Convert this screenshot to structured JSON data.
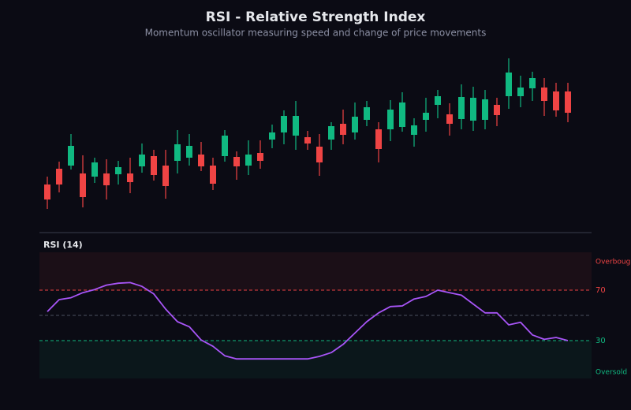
{
  "chart_data": [
    {
      "type": "candlestick",
      "title": "RSI - Relative Strength Index",
      "subtitle": "Momentum oscillator measuring speed and change of price movements",
      "open": [
        66,
        86,
        90,
        80,
        76,
        80,
        79,
        80,
        89,
        102,
        90,
        96,
        100,
        104,
        90,
        102,
        101,
        90,
        106,
        123,
        132,
        128,
        126,
        114,
        123,
        143,
        132,
        148,
        136,
        136,
        139,
        129,
        148,
        167,
        155,
        149,
        147,
        148,
        167,
        178,
        178,
        188,
        189,
        184,
        184
      ],
      "high": [
        76,
        95,
        130,
        103,
        100,
        98,
        96,
        100,
        118,
        110,
        110,
        135,
        130,
        120,
        100,
        135,
        108,
        122,
        122,
        142,
        160,
        172,
        134,
        130,
        145,
        161,
        170,
        172,
        145,
        173,
        183,
        150,
        176,
        186,
        169,
        193,
        190,
        186,
        176,
        226,
        204,
        209,
        201,
        195,
        195
      ],
      "low": [
        35,
        56,
        85,
        37,
        68,
        47,
        66,
        55,
        81,
        71,
        48,
        80,
        90,
        83,
        59,
        95,
        72,
        78,
        86,
        112,
        117,
        110,
        110,
        77,
        110,
        117,
        123,
        140,
        94,
        121,
        133,
        114,
        133,
        150,
        128,
        136,
        134,
        136,
        140,
        162,
        164,
        172,
        153,
        152,
        145
      ],
      "close": [
        47,
        66,
        115,
        50,
        94,
        65,
        88,
        69,
        104,
        78,
        64,
        117,
        115,
        89,
        67,
        128,
        89,
        104,
        96,
        132,
        153,
        153,
        118,
        94,
        140,
        129,
        152,
        164,
        111,
        161,
        170,
        141,
        157,
        178,
        143,
        177,
        176,
        174,
        154,
        208,
        189,
        201,
        172,
        160,
        157
      ],
      "up_color": "#10b981",
      "down_color": "#ef4444",
      "ylim": [
        30,
        230
      ]
    },
    {
      "type": "line",
      "title": "RSI (14)",
      "values": [
        53,
        62.5,
        64,
        68,
        70.5,
        74,
        75.5,
        76,
        73,
        67,
        55,
        45,
        41,
        30.5,
        25.5,
        18,
        15.5,
        15.5,
        15.5,
        15.5,
        15.5,
        15.5,
        15.5,
        17.5,
        20.5,
        27,
        36,
        45,
        52,
        57,
        57.5,
        63,
        65,
        70,
        68,
        66,
        59,
        52,
        52,
        42.5,
        44.5,
        34.5,
        31,
        32.5,
        30
      ],
      "color": "#a855f7",
      "ylim": [
        0,
        100
      ],
      "yticks": [
        30,
        70
      ],
      "ytick_colors": [
        "#10b981",
        "#ef4444"
      ],
      "midline": 50,
      "zones": [
        {
          "label": "Overbought",
          "from": 70,
          "to": 100,
          "color": "#ef4444"
        },
        {
          "label": "Oversold",
          "from": 0,
          "to": 30,
          "color": "#10b981"
        }
      ]
    }
  ]
}
